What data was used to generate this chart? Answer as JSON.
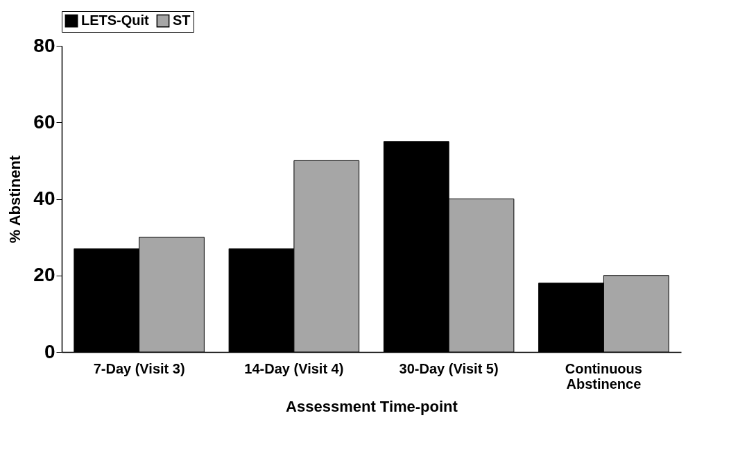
{
  "chart_data": {
    "type": "bar",
    "xlabel": "Assessment Time-point",
    "ylabel": "% Abstinent",
    "categories": [
      "7-Day (Visit 3)",
      "14-Day (Visit 4)",
      "30-Day (Visit 5)",
      "Continuous Abstinence"
    ],
    "series": [
      {
        "name": "LETS-Quit",
        "color": "#000000",
        "values": [
          27,
          27,
          55,
          18
        ]
      },
      {
        "name": "ST",
        "color": "#a6a6a6",
        "values": [
          30,
          50,
          40,
          20
        ]
      }
    ],
    "ylim": [
      0,
      80
    ],
    "yticks": [
      0,
      20,
      40,
      60,
      80
    ],
    "grid": false,
    "legend": "top"
  }
}
